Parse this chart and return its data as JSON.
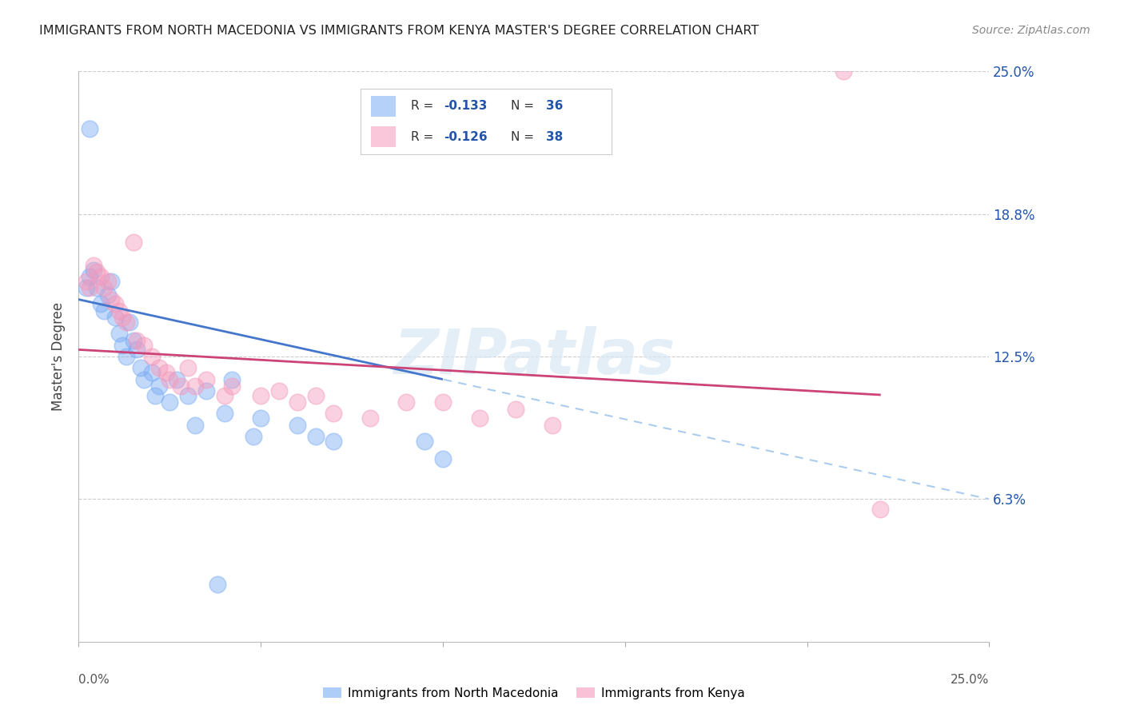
{
  "title": "IMMIGRANTS FROM NORTH MACEDONIA VS IMMIGRANTS FROM KENYA MASTER'S DEGREE CORRELATION CHART",
  "source": "Source: ZipAtlas.com",
  "ylabel": "Master's Degree",
  "xlim": [
    0.0,
    0.25
  ],
  "ylim": [
    0.0,
    0.25
  ],
  "yticks": [
    0.0,
    0.0625,
    0.125,
    0.1875,
    0.25
  ],
  "ytick_labels": [
    "",
    "6.3%",
    "12.5%",
    "18.8%",
    "25.0%"
  ],
  "watermark": "ZIPatlas",
  "series1_label": "Immigrants from North Macedonia",
  "series1_color": "#7aacf5",
  "series1_R": "-0.133",
  "series1_N": "36",
  "series1_x": [
    0.002,
    0.003,
    0.004,
    0.005,
    0.006,
    0.007,
    0.008,
    0.009,
    0.01,
    0.011,
    0.012,
    0.013,
    0.014,
    0.015,
    0.016,
    0.017,
    0.018,
    0.02,
    0.021,
    0.022,
    0.025,
    0.027,
    0.03,
    0.032,
    0.035,
    0.04,
    0.042,
    0.048,
    0.05,
    0.06,
    0.065,
    0.07,
    0.003,
    0.095,
    0.1,
    0.038
  ],
  "series1_y": [
    0.155,
    0.16,
    0.163,
    0.155,
    0.148,
    0.145,
    0.152,
    0.158,
    0.142,
    0.135,
    0.13,
    0.125,
    0.14,
    0.132,
    0.128,
    0.12,
    0.115,
    0.118,
    0.108,
    0.112,
    0.105,
    0.115,
    0.108,
    0.095,
    0.11,
    0.1,
    0.115,
    0.09,
    0.098,
    0.095,
    0.09,
    0.088,
    0.225,
    0.088,
    0.08,
    0.025
  ],
  "series2_label": "Immigrants from Kenya",
  "series2_color": "#f599bb",
  "series2_R": "-0.126",
  "series2_N": "38",
  "series2_x": [
    0.002,
    0.003,
    0.004,
    0.005,
    0.006,
    0.007,
    0.008,
    0.009,
    0.01,
    0.011,
    0.012,
    0.013,
    0.015,
    0.016,
    0.018,
    0.02,
    0.022,
    0.024,
    0.025,
    0.028,
    0.03,
    0.032,
    0.035,
    0.04,
    0.042,
    0.05,
    0.055,
    0.06,
    0.065,
    0.07,
    0.08,
    0.09,
    0.1,
    0.11,
    0.12,
    0.13,
    0.21,
    0.22
  ],
  "series2_y": [
    0.158,
    0.155,
    0.165,
    0.162,
    0.16,
    0.155,
    0.158,
    0.15,
    0.148,
    0.145,
    0.142,
    0.14,
    0.175,
    0.132,
    0.13,
    0.125,
    0.12,
    0.118,
    0.115,
    0.112,
    0.12,
    0.112,
    0.115,
    0.108,
    0.112,
    0.108,
    0.11,
    0.105,
    0.108,
    0.1,
    0.098,
    0.105,
    0.105,
    0.098,
    0.102,
    0.095,
    0.25,
    0.058
  ],
  "trendline1_color": "#4477cc",
  "trendline2_color": "#cc4477",
  "trendline_dashed_color": "#aaccee",
  "background_color": "#ffffff",
  "grid_color": "#cccccc",
  "legend_R_color": "#2255aa",
  "legend_N_color": "#2255aa",
  "legend_text_color": "#333333"
}
